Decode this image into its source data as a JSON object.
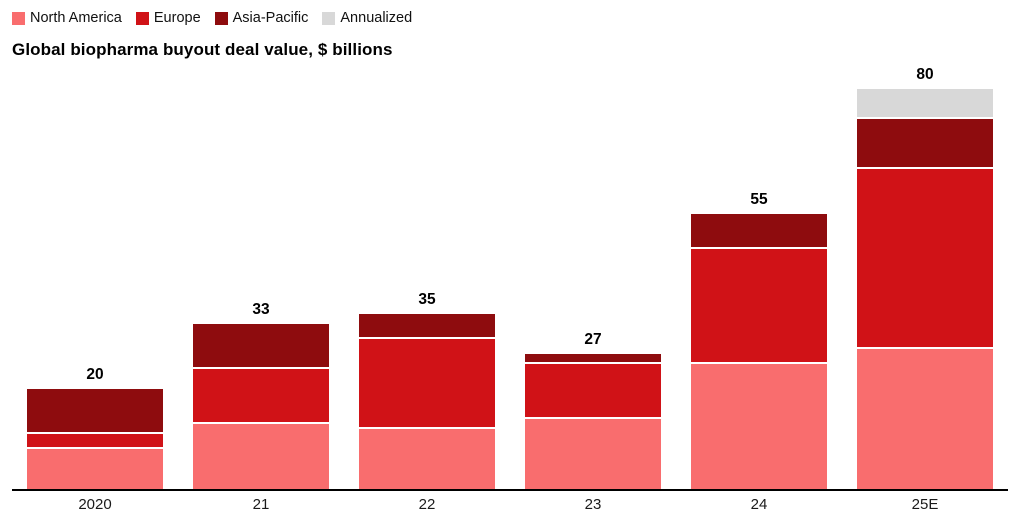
{
  "colors": {
    "north_america": "#f96d6e",
    "europe": "#d01217",
    "asia_pacific": "#8e0c0e",
    "annualized": "#d8d8d8",
    "axis": "#000000"
  },
  "chart_data": {
    "type": "bar",
    "stacked": true,
    "title": "Global biopharma buyout deal value, $ billions",
    "categories": [
      "2020",
      "21",
      "22",
      "23",
      "24",
      "25E"
    ],
    "series": [
      {
        "name": "North America",
        "color_key": "north_america",
        "values": [
          8,
          13,
          12,
          14,
          25,
          28
        ]
      },
      {
        "name": "Europe",
        "color_key": "europe",
        "values": [
          3,
          11,
          18,
          11,
          23,
          36
        ]
      },
      {
        "name": "Asia-Pacific",
        "color_key": "asia_pacific",
        "values": [
          9,
          9,
          5,
          2,
          7,
          10
        ]
      },
      {
        "name": "Annualized",
        "color_key": "annualized",
        "values": [
          0,
          0,
          0,
          0,
          0,
          6
        ]
      }
    ],
    "totals": [
      "20",
      "33",
      "35",
      "27",
      "55",
      "80"
    ],
    "ylim": [
      0,
      84
    ],
    "grid": false,
    "legend_position": "top-left"
  }
}
